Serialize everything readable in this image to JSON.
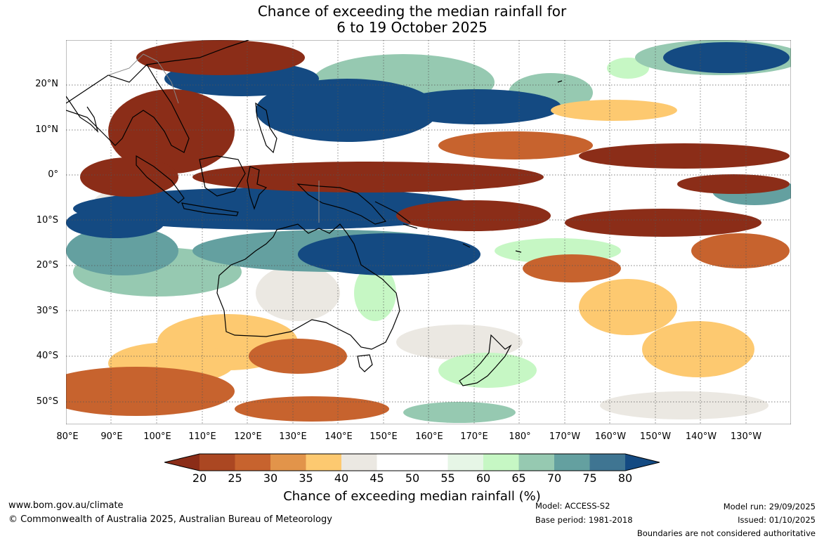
{
  "title": {
    "line1": "Chance of exceeding the median rainfall for",
    "line2": "6 to 19 October 2025"
  },
  "axes": {
    "lat_labels": [
      "20°N",
      "10°N",
      "0°",
      "10°S",
      "20°S",
      "30°S",
      "40°S",
      "50°S"
    ],
    "lon_labels": [
      "80°E",
      "90°E",
      "100°E",
      "110°E",
      "120°E",
      "130°E",
      "140°E",
      "150°E",
      "160°E",
      "170°E",
      "180°",
      "170°W",
      "160°W",
      "150°W",
      "140°W",
      "130°W"
    ]
  },
  "colorbar": {
    "ticks": [
      "20",
      "25",
      "30",
      "35",
      "40",
      "45",
      "50",
      "55",
      "60",
      "65",
      "70",
      "75",
      "80"
    ],
    "colors": [
      "#8b2d18",
      "#ab4722",
      "#c7632e",
      "#e2944a",
      "#fdc970",
      "#ebe8e2",
      "#ffffff",
      "#ffffff",
      "#e6f6e6",
      "#c6f7c4",
      "#96c9b1",
      "#64a0a0",
      "#3f7592",
      "#144a82"
    ],
    "label": "Chance of exceeding median rainfall (%)"
  },
  "footer": {
    "website": "www.bom.gov.au/climate",
    "copyright": "© Commonwealth of Australia 2025, Australian Bureau of Meteorology",
    "model": "Model: ACCESS-S2",
    "base_period": "Base period: 1981-2018",
    "model_run": "Model run: 29/09/2025",
    "issued": "Issued: 01/10/2025",
    "disclaimer": "Boundaries are not considered authoritative"
  }
}
